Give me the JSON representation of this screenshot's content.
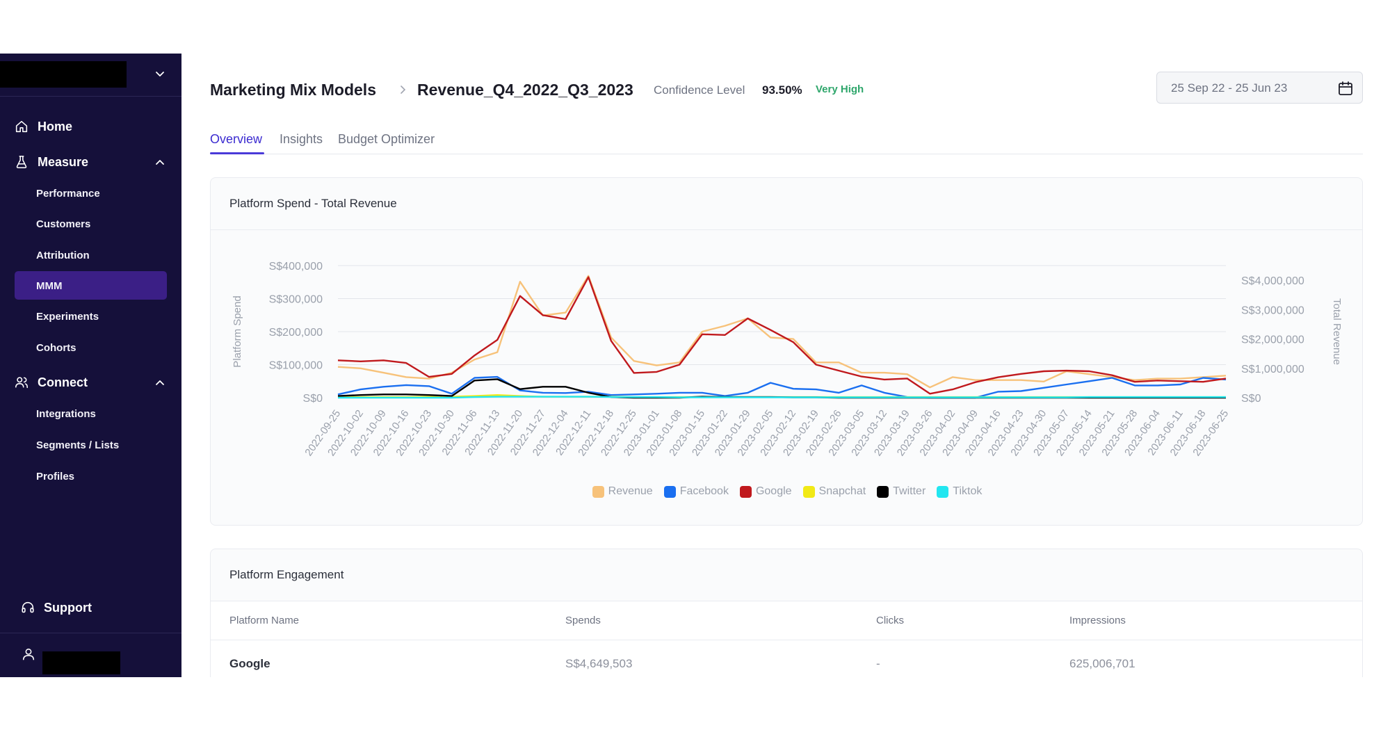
{
  "sidebar": {
    "home": "Home",
    "measure": "Measure",
    "measure_items": [
      "Performance",
      "Customers",
      "Attribution",
      "MMM",
      "Experiments",
      "Cohorts"
    ],
    "connect": "Connect",
    "connect_items": [
      "Integrations",
      "Segments / Lists",
      "Profiles"
    ],
    "support": "Support",
    "active_item": "MMM"
  },
  "header": {
    "section": "Marketing Mix Models",
    "model_name": "Revenue_Q4_2022_Q3_2023",
    "confidence_label": "Confidence Level",
    "confidence_value": "93.50%",
    "confidence_badge": "Very High",
    "date_range": "25 Sep 22 - 25 Jun 23"
  },
  "tabs": [
    "Overview",
    "Insights",
    "Budget Optimizer"
  ],
  "active_tab": "Overview",
  "colors": {
    "sidebar_bg": "#15103a",
    "active_bg": "#3b1f86",
    "accent": "#4a3ad8",
    "badge": "#2ea66b"
  },
  "chart_card": {
    "title": "Platform Spend - Total Revenue"
  },
  "chart_data": {
    "type": "line",
    "ylabel": "Platform Spend",
    "y2label": "Total Revenue",
    "ylim": [
      0,
      400000
    ],
    "y2lim": [
      0,
      4500000
    ],
    "y_ticks": [
      "S$0",
      "S$100,000",
      "S$200,000",
      "S$300,000",
      "S$400,000"
    ],
    "y2_ticks": [
      "S$0",
      "S$1,000,000",
      "S$2,000,000",
      "S$3,000,000",
      "S$4,000,000"
    ],
    "grid": true,
    "legend_position": "bottom",
    "x": [
      "2022-09-25",
      "2022-10-02",
      "2022-10-09",
      "2022-10-16",
      "2022-10-23",
      "2022-10-30",
      "2022-11-06",
      "2022-11-13",
      "2022-11-20",
      "2022-11-27",
      "2022-12-04",
      "2022-12-11",
      "2022-12-18",
      "2022-12-25",
      "2023-01-01",
      "2023-01-08",
      "2023-01-15",
      "2023-01-22",
      "2023-01-29",
      "2023-02-05",
      "2023-02-12",
      "2023-02-19",
      "2023-02-26",
      "2023-03-05",
      "2023-03-12",
      "2023-03-19",
      "2023-03-26",
      "2023-04-02",
      "2023-04-09",
      "2023-04-16",
      "2023-04-23",
      "2023-04-30",
      "2023-05-07",
      "2023-05-14",
      "2023-05-21",
      "2023-05-28",
      "2023-06-04",
      "2023-06-11",
      "2023-06-18",
      "2023-06-25"
    ],
    "series": [
      {
        "name": "Revenue",
        "axis": "right",
        "color": "#f7c27a",
        "values": [
          1050000,
          1000000,
          850000,
          700000,
          650000,
          850000,
          1300000,
          1550000,
          3950000,
          2800000,
          2900000,
          4150000,
          2050000,
          1250000,
          1100000,
          1200000,
          2250000,
          2450000,
          2700000,
          2050000,
          2000000,
          1200000,
          1200000,
          850000,
          850000,
          800000,
          350000,
          700000,
          600000,
          600000,
          600000,
          550000,
          900000,
          800000,
          700000,
          600000,
          650000,
          650000,
          700000,
          750000
        ]
      },
      {
        "name": "Facebook",
        "axis": "left",
        "color": "#1a6ff0",
        "values": [
          10000,
          25000,
          33000,
          38000,
          35000,
          12000,
          60000,
          63000,
          22000,
          15000,
          14000,
          18000,
          8000,
          10000,
          12000,
          15000,
          15000,
          5000,
          15000,
          45000,
          27000,
          25000,
          15000,
          37000,
          15000,
          2000,
          0,
          0,
          0,
          18000,
          20000,
          30000,
          40000,
          50000,
          60000,
          37000,
          37000,
          40000,
          60000,
          55000
        ]
      },
      {
        "name": "Google",
        "axis": "left",
        "color": "#c0191d",
        "values": [
          113000,
          110000,
          113000,
          105000,
          63000,
          72000,
          128000,
          175000,
          308000,
          250000,
          238000,
          365000,
          172000,
          75000,
          78000,
          100000,
          192000,
          190000,
          240000,
          205000,
          168000,
          100000,
          82000,
          64000,
          55000,
          58000,
          12000,
          25000,
          47000,
          62000,
          72000,
          80000,
          82000,
          80000,
          68000,
          48000,
          52000,
          50000,
          48000,
          58000
        ]
      },
      {
        "name": "Snapchat",
        "axis": "left",
        "color": "#f1e916",
        "values": [
          2000,
          2000,
          2000,
          2000,
          3000,
          3000,
          5000,
          8000,
          5000,
          3000,
          3000,
          3000,
          3000,
          2000,
          2000,
          2000,
          2000,
          2000,
          2000,
          2000,
          2000,
          2000,
          2000,
          2000,
          2000,
          2000,
          2000,
          2000,
          2000,
          2000,
          2000,
          2000,
          2000,
          2000,
          2000,
          2000,
          2000,
          2000,
          2000,
          2000
        ]
      },
      {
        "name": "Twitter",
        "axis": "left",
        "color": "#000000",
        "values": [
          5000,
          8000,
          10000,
          10000,
          8000,
          5000,
          52000,
          56000,
          26000,
          33000,
          33000,
          15000,
          2000,
          0,
          0,
          0,
          3000,
          2000,
          2000,
          2000,
          1000,
          1000,
          0,
          0,
          0,
          0,
          0,
          0,
          0,
          0,
          0,
          0,
          0,
          0,
          0,
          0,
          0,
          0,
          0,
          0
        ]
      },
      {
        "name": "Tiktok",
        "axis": "left",
        "color": "#22e6f0",
        "values": [
          0,
          0,
          0,
          0,
          0,
          0,
          2000,
          3000,
          3000,
          3000,
          3000,
          3000,
          2000,
          2000,
          2000,
          1000,
          1000,
          1000,
          1000,
          1000,
          1000,
          1000,
          1000,
          1000,
          1000,
          1000,
          1000,
          1000,
          1000,
          1000,
          1000,
          1000,
          1000,
          2000,
          2000,
          2000,
          2000,
          2000,
          2000,
          2000
        ]
      }
    ]
  },
  "engagement": {
    "title": "Platform Engagement",
    "columns": [
      "Platform Name",
      "Spends",
      "Clicks",
      "Impressions"
    ],
    "rows": [
      {
        "name": "Google",
        "spends": "S$4,649,503",
        "clicks": "-",
        "impressions": "625,006,701"
      }
    ]
  }
}
